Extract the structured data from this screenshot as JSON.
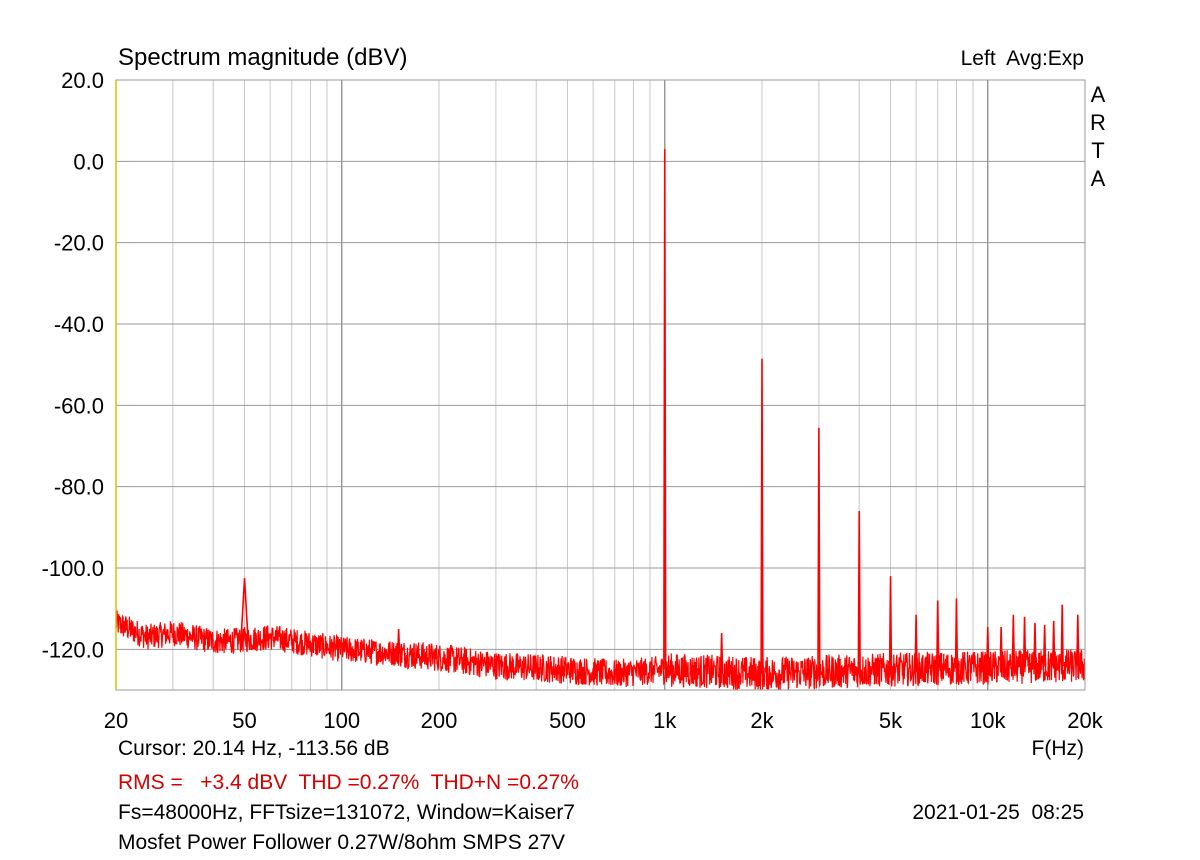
{
  "header": {
    "title": "Spectrum magnitude (dBV)",
    "channel_avg": "Left  Avg:Exp",
    "brand": [
      "A",
      "R",
      "T",
      "A"
    ]
  },
  "footer": {
    "cursor": "Cursor: 20.14 Hz, -113.56 dB",
    "x_unit": "F(Hz)",
    "stats": "RMS =   +3.4 dBV  THD =0.27%  THD+N =0.27%",
    "settings": "Fs=48000Hz, FFTsize=131072, Window=Kaiser7",
    "datetime": "2021-01-25  08:25",
    "description": "Mosfet Power Follower 0.27W/8ohm SMPS 27V"
  },
  "chart_data": {
    "type": "line",
    "title": "Spectrum magnitude (dBV)",
    "xlabel": "F(Hz)",
    "ylabel": "",
    "x_scale": "log",
    "xlim": [
      20,
      20000
    ],
    "ylim": [
      -130,
      20
    ],
    "grid": true,
    "line_color": "#ff0000",
    "y_ticks": [
      20,
      0,
      -20,
      -40,
      -60,
      -80,
      -100,
      -120
    ],
    "y_tick_labels": [
      "20.0",
      "0.0",
      "-20.0",
      "-40.0",
      "-60.0",
      "-80.0",
      "-100.0",
      "-120.0"
    ],
    "x_ticks": [
      20,
      50,
      100,
      200,
      500,
      1000,
      2000,
      5000,
      10000,
      20000
    ],
    "x_tick_labels": [
      "20",
      "50",
      "100",
      "200",
      "500",
      "1k",
      "2k",
      "5k",
      "10k",
      "20k"
    ],
    "series": [
      {
        "peaks": [
          {
            "f": 50,
            "db": -102.5
          },
          {
            "f": 150,
            "db": -115
          },
          {
            "f": 1000,
            "db": 3
          },
          {
            "f": 1500,
            "db": -116
          },
          {
            "f": 2000,
            "db": -48.5
          },
          {
            "f": 3000,
            "db": -65.5
          },
          {
            "f": 4000,
            "db": -86
          },
          {
            "f": 5000,
            "db": -102
          },
          {
            "f": 6000,
            "db": -111.5
          },
          {
            "f": 7000,
            "db": -108
          },
          {
            "f": 8000,
            "db": -107.5
          },
          {
            "f": 10000,
            "db": -114.5
          },
          {
            "f": 11000,
            "db": -114.5
          },
          {
            "f": 12000,
            "db": -111.5
          },
          {
            "f": 13000,
            "db": -112
          },
          {
            "f": 14000,
            "db": -113.5
          },
          {
            "f": 15000,
            "db": -114
          },
          {
            "f": 16000,
            "db": -113
          },
          {
            "f": 17000,
            "db": -109
          },
          {
            "f": 19000,
            "db": -111.5
          }
        ],
        "noise_floor": [
          {
            "f": 20,
            "db": -113.5
          },
          {
            "f": 25,
            "db": -117
          },
          {
            "f": 30,
            "db": -116
          },
          {
            "f": 40,
            "db": -118
          },
          {
            "f": 45,
            "db": -118
          },
          {
            "f": 60,
            "db": -117
          },
          {
            "f": 100,
            "db": -120
          },
          {
            "f": 150,
            "db": -121
          },
          {
            "f": 200,
            "db": -122
          },
          {
            "f": 300,
            "db": -124
          },
          {
            "f": 500,
            "db": -125
          },
          {
            "f": 700,
            "db": -126
          },
          {
            "f": 1000,
            "db": -125
          },
          {
            "f": 2000,
            "db": -126
          },
          {
            "f": 5000,
            "db": -125
          },
          {
            "f": 10000,
            "db": -124.5
          },
          {
            "f": 20000,
            "db": -124
          }
        ]
      }
    ]
  }
}
